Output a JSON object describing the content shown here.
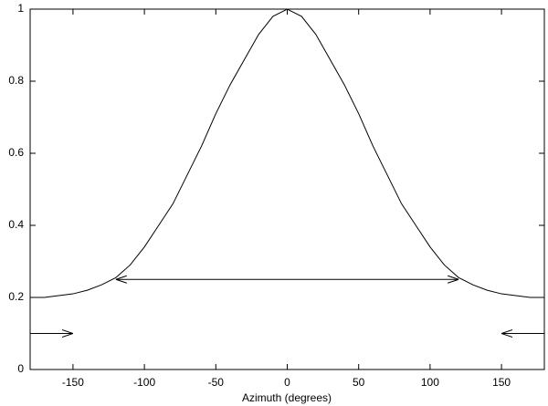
{
  "chart_data": {
    "type": "line",
    "xlabel": "Azimuth (degrees)",
    "x": [
      -180,
      -170,
      -160,
      -150,
      -140,
      -130,
      -120,
      -110,
      -100,
      -90,
      -80,
      -70,
      -60,
      -50,
      -40,
      -30,
      -20,
      -10,
      0,
      10,
      20,
      30,
      40,
      50,
      60,
      70,
      80,
      90,
      100,
      110,
      120,
      130,
      140,
      150,
      160,
      170,
      180
    ],
    "series": [
      {
        "color": "#000000",
        "values": [
          0.2,
          0.2,
          0.205,
          0.21,
          0.22,
          0.235,
          0.255,
          0.29,
          0.34,
          0.4,
          0.46,
          0.54,
          0.62,
          0.71,
          0.79,
          0.86,
          0.93,
          0.98,
          1.0,
          0.98,
          0.93,
          0.86,
          0.79,
          0.71,
          0.62,
          0.54,
          0.46,
          0.4,
          0.34,
          0.29,
          0.255,
          0.235,
          0.22,
          0.21,
          0.205,
          0.2,
          0.2
        ]
      }
    ],
    "xlim": [
      -180,
      180
    ],
    "xticks": [
      -150,
      -100,
      -50,
      0,
      50,
      100,
      150
    ],
    "ylim": [
      0,
      1
    ],
    "yticks": [
      0,
      0.2,
      0.4,
      0.6,
      0.8,
      1
    ],
    "grid": false,
    "arrows": [
      {
        "x1": -120,
        "y1": 0.25,
        "x2": 120,
        "y2": 0.25,
        "heads": "both"
      },
      {
        "x1": -180,
        "y1": 0.1,
        "x2": -150,
        "y2": 0.1,
        "heads": "end"
      },
      {
        "x1": 180,
        "y1": 0.1,
        "x2": 150,
        "y2": 0.1,
        "heads": "end"
      }
    ]
  }
}
